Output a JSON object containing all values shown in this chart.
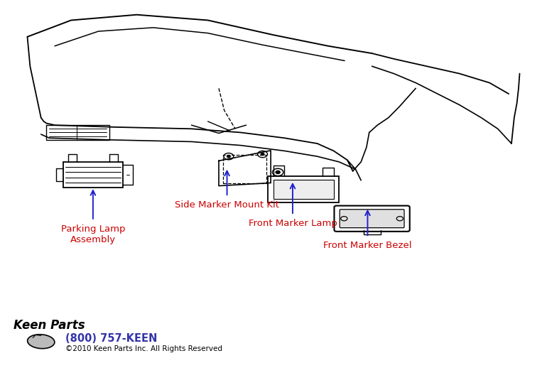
{
  "bg_color": "#ffffff",
  "label_color_red": "#cc0000",
  "label_color_blue": "#2222cc",
  "phone_color": "#3333aa",
  "copyright_color": "#000000",
  "labels": {
    "parking_lamp": "Parking Lamp\nAssembly",
    "side_marker": "Side Marker Mount Kit",
    "front_marker_lamp": "Front Marker Lamp",
    "front_marker_bezel": "Front Marker Bezel"
  },
  "footer_phone": "(800) 757-KEEN",
  "footer_copy": "©2010 Keen Parts Inc. All Rights Reserved"
}
